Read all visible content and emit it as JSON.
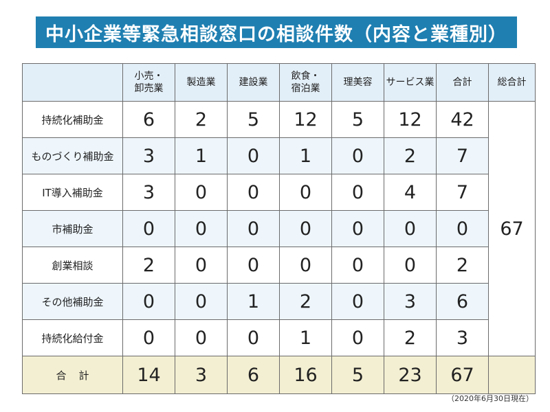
{
  "title": "中小企業等緊急相談窓口の相談件数（内容と業種別）",
  "header": {
    "corner": "",
    "columns": [
      "小売・\n卸売業",
      "製造業",
      "建設業",
      "飲食・\n宿泊業",
      "理美容",
      "サービス業",
      "合計"
    ],
    "grand_total_label": "総合計"
  },
  "rows": [
    {
      "label": "持続化補助金",
      "values": [
        "6",
        "2",
        "5",
        "12",
        "5",
        "12",
        "42"
      ]
    },
    {
      "label": "ものづくり補助金",
      "values": [
        "3",
        "1",
        "0",
        "1",
        "0",
        "2",
        "7"
      ]
    },
    {
      "label": "IT導入補助金",
      "values": [
        "3",
        "0",
        "0",
        "0",
        "0",
        "4",
        "7"
      ]
    },
    {
      "label": "市補助金",
      "values": [
        "0",
        "0",
        "0",
        "0",
        "0",
        "0",
        "0"
      ]
    },
    {
      "label": "創業相談",
      "values": [
        "2",
        "0",
        "0",
        "0",
        "0",
        "0",
        "2"
      ]
    },
    {
      "label": "その他補助金",
      "values": [
        "0",
        "0",
        "1",
        "2",
        "0",
        "3",
        "6"
      ]
    },
    {
      "label": "持続化給付金",
      "values": [
        "0",
        "0",
        "0",
        "1",
        "0",
        "2",
        "3"
      ]
    }
  ],
  "grand_total": "67",
  "totals": {
    "label": "合計",
    "values": [
      "14",
      "3",
      "6",
      "16",
      "5",
      "23",
      "67"
    ]
  },
  "footnote": "（2020年6月30日現在）",
  "colors": {
    "title_bg": "#1f7fb1",
    "header_bg": "#e3eff8",
    "alt_row_bg": "#eef6fc",
    "total_row_bg": "#f3efd2"
  }
}
